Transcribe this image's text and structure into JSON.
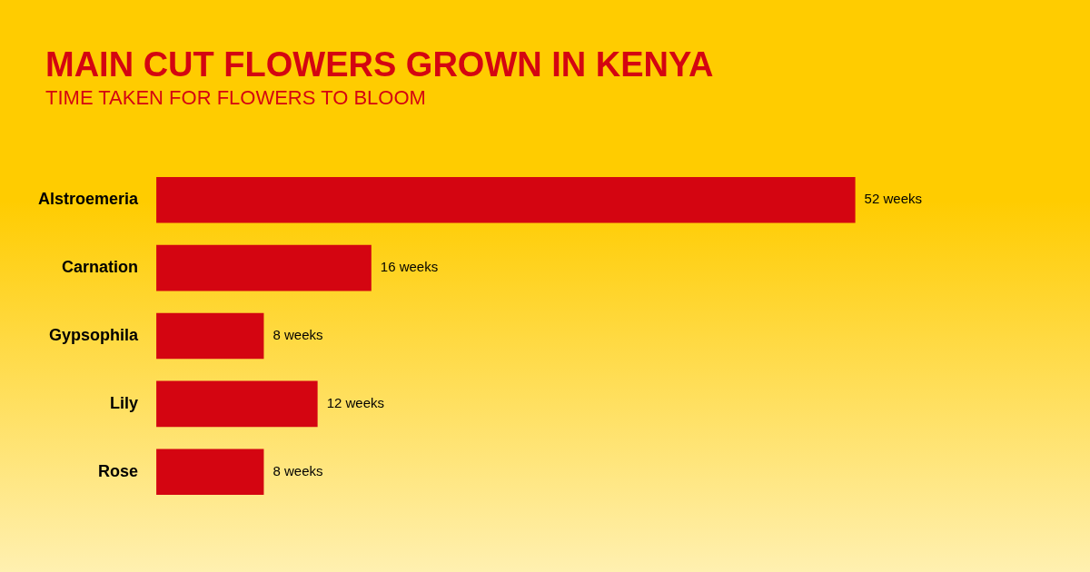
{
  "chart_data": {
    "type": "bar",
    "orientation": "horizontal",
    "title": "MAIN CUT FLOWERS GROWN IN KENYA",
    "subtitle": "TIME TAKEN FOR FLOWERS TO BLOOM",
    "categories": [
      "Alstroemeria",
      "Carnation",
      "Gypsophila",
      "Lily",
      "Rose"
    ],
    "values": [
      52,
      16,
      8,
      12,
      8
    ],
    "value_labels": [
      "52 weeks",
      "16 weeks",
      "8 weeks",
      "12 weeks",
      "8 weeks"
    ],
    "color": "#d40511",
    "tick_labels": "y"
  }
}
